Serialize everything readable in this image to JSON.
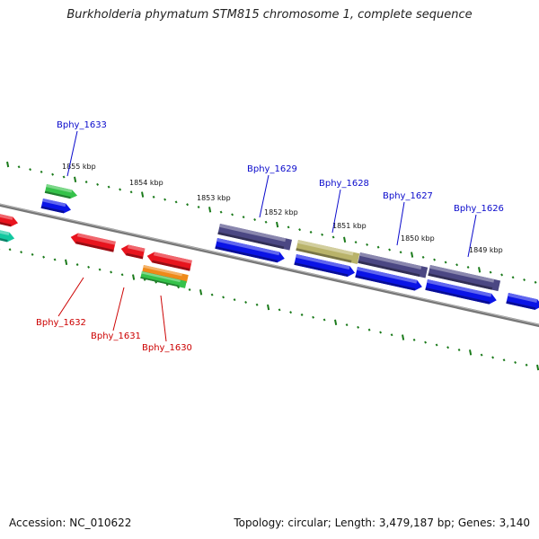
{
  "title": "Burkholderia phymatum STM815 chromosome 1, complete sequence",
  "footer": {
    "accession": "Accession: NC_010622",
    "summary": "Topology: circular; Length: 3,479,187 bp; Genes: 3,140"
  },
  "colors": {
    "backbone": "#777777",
    "tick": "#1a7a1a",
    "label_top": "#0a0acc",
    "label_bottom": "#cc0000",
    "cds_blue": "#0a14e6",
    "gene_navy": "#4b4783",
    "gene_red": "#e8141e",
    "gene_green": "#35c24a",
    "gene_orange": "#ee8a1a",
    "gene_teal": "#12c8a0",
    "gene_olive": "#b9b36a"
  },
  "scale": {
    "kbp_labels": [
      "1855 kbp",
      "1854 kbp",
      "1853 kbp",
      "1852 kbp",
      "1851 kbp",
      "1850 kbp",
      "1849 kbp"
    ]
  },
  "gene_labels_top": [
    "Bphy_1633",
    "Bphy_1629",
    "Bphy_1628",
    "Bphy_1627",
    "Bphy_1626"
  ],
  "gene_labels_bottom": [
    "Bphy_1632",
    "Bphy_1631",
    "Bphy_1630"
  ]
}
